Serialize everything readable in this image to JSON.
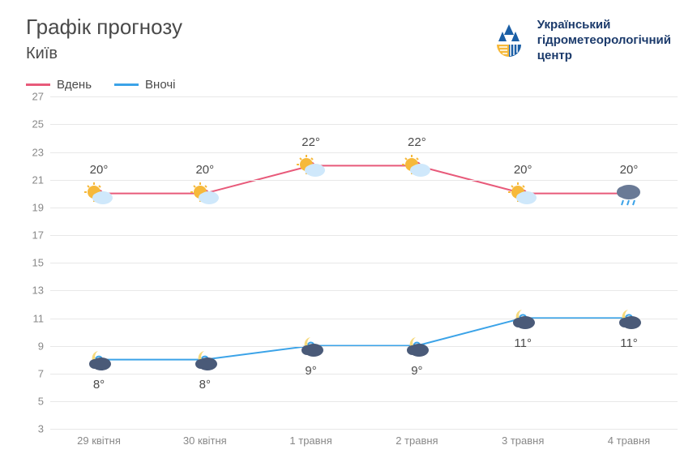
{
  "header": {
    "title": "Графік прогнозу",
    "city": "Київ",
    "org_name_line1": "Український",
    "org_name_line2": "гідрометеорологічний",
    "org_name_line3": "центр",
    "logo_colors": {
      "blue": "#1b5fa6",
      "yellow": "#f6b93b"
    }
  },
  "legend": {
    "day_label": "Вдень",
    "night_label": "Вночі"
  },
  "chart": {
    "type": "line",
    "ylim": [
      3,
      27
    ],
    "ytick_step": 2,
    "yticks": [
      3,
      5,
      7,
      9,
      11,
      13,
      15,
      17,
      19,
      21,
      23,
      25,
      27
    ],
    "grid_color": "#e8e8e8",
    "background_color": "#ffffff",
    "xlabels": [
      "29 квітня",
      "30 квітня",
      "1 травня",
      "2 травня",
      "3 травня",
      "4 травня"
    ],
    "series": {
      "day": {
        "color": "#e85a7a",
        "line_width": 2,
        "values": [
          20,
          20,
          22,
          22,
          20,
          20
        ],
        "icons": [
          "sun-cloud",
          "sun-cloud",
          "sun-cloud",
          "sun-cloud",
          "sun-cloud",
          "cloud-rain"
        ],
        "label_offset_y": -38
      },
      "night": {
        "color": "#3ba3e8",
        "line_width": 2,
        "values": [
          8,
          8,
          9,
          9,
          11,
          11
        ],
        "icons": [
          "moon-cloud",
          "moon-cloud",
          "moon-cloud",
          "moon-cloud",
          "moon-cloud",
          "moon-cloud"
        ],
        "label_offset_y": 22
      }
    },
    "axis_fontsize": 13,
    "label_fontsize": 15,
    "title_fontsize": 26,
    "text_color": "#4a4a4a",
    "axis_color": "#888888"
  }
}
